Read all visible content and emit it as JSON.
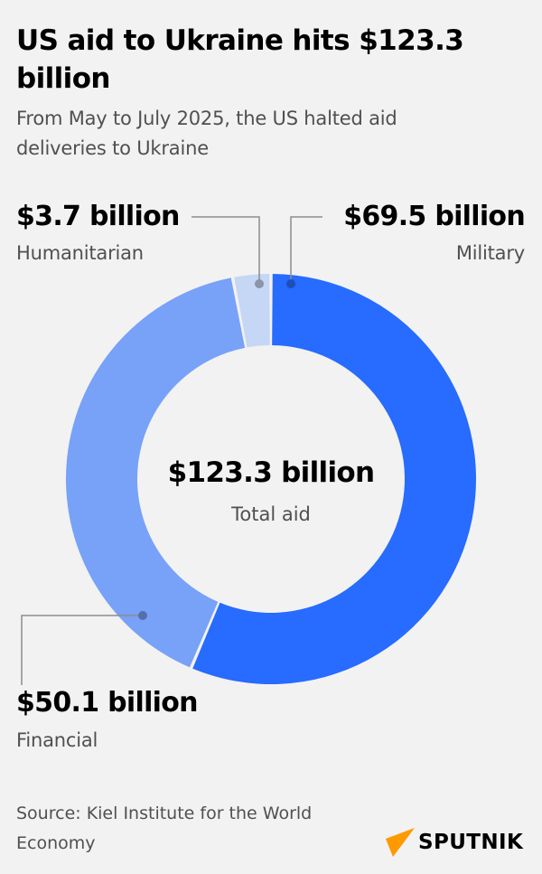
{
  "header": {
    "title": "US aid to Ukraine hits $123.3 billion",
    "subtitle": "From May to July 2025, the US halted aid deliveries to Ukraine"
  },
  "labels": {
    "humanitarian": {
      "value": "$3.7 billion",
      "label": "Humanitarian"
    },
    "military": {
      "value": "$69.5 billion",
      "label": "Military"
    },
    "financial": {
      "value": "$50.1 billion",
      "label": "Financial"
    },
    "total": {
      "value": "$123.3 billion",
      "label": "Total aid"
    }
  },
  "colors": {
    "background": "#f2f2f2",
    "military": "#276bff",
    "financial": "#78a1f8",
    "humanitarian": "#c6d6f5",
    "logo_accent": "#ff9900"
  },
  "footer": {
    "source": "Source: Kiel Institute for the World Economy",
    "logo": "SPUTNIK",
    "logo_icon": "sputnik-arrow-icon"
  },
  "chart_data": {
    "type": "pie",
    "variant": "donut",
    "title": "US aid to Ukraine hits $123.3 billion",
    "subtitle": "From May to July 2025, the US halted aid deliveries to Ukraine",
    "unit": "billion USD",
    "categories": [
      "Military",
      "Financial",
      "Humanitarian"
    ],
    "values": [
      69.5,
      50.1,
      3.7
    ],
    "total": 123.3,
    "center_label": "Total aid",
    "colors": [
      "#276bff",
      "#78a1f8",
      "#c6d6f5"
    ],
    "start_angle": "12 o'clock, clockwise",
    "legend": "callout labels",
    "source": "Kiel Institute for the World Economy"
  }
}
